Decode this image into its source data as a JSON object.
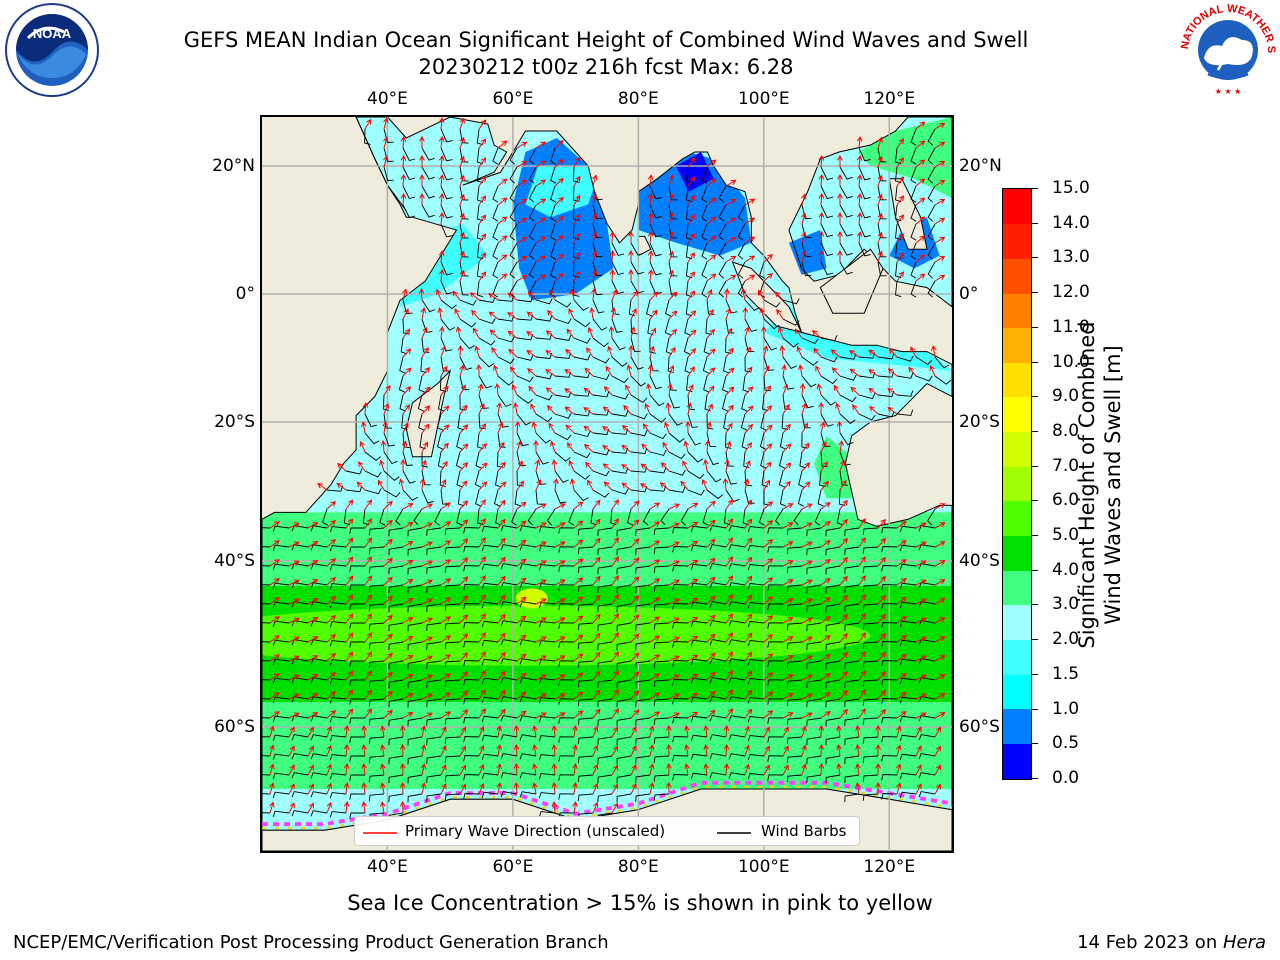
{
  "header": {
    "title_line1": "GEFS MEAN Indian Ocean Significant Height of Combined Wind Waves and Swell",
    "title_line2": "20230212 t00z 216h fcst   Max: 6.28"
  },
  "logos": {
    "left": "NOAA",
    "right_text": "NATIONAL WEATHER SERVICE"
  },
  "map": {
    "lon_ticks": [
      "40°E",
      "60°E",
      "80°E",
      "100°E",
      "120°E"
    ],
    "lat_ticks": [
      "20°N",
      "0°",
      "20°S",
      "40°S",
      "60°S"
    ],
    "extent": {
      "lon": [
        20,
        130
      ],
      "lat": [
        -72,
        27
      ]
    },
    "land_color": "#efecdc",
    "grid": true
  },
  "legend": {
    "wave_label": "Primary Wave Direction (unscaled)",
    "wind_label": "Wind Barbs",
    "wave_color": "#ff0000",
    "wind_color": "#000000"
  },
  "colorbar": {
    "title_line1": "Significant Height of Combined",
    "title_line2": "Wind Waves and Swell [m]",
    "ticks": [
      "0.0",
      "0.5",
      "1.0",
      "1.5",
      "2.0",
      "3.0",
      "4.0",
      "5.0",
      "6.0",
      "7.0",
      "8.0",
      "9.0",
      "10.0",
      "11.0",
      "12.0",
      "13.0",
      "14.0",
      "15.0"
    ],
    "colors": [
      "#0000ff",
      "#0080ff",
      "#00ffff",
      "#40ffff",
      "#a0ffff",
      "#40ff80",
      "#00e000",
      "#50ff00",
      "#a0ff00",
      "#d0ff00",
      "#ffff00",
      "#ffe000",
      "#ffb000",
      "#ff8000",
      "#ff5000",
      "#ff2000",
      "#ff0000"
    ]
  },
  "notes": {
    "sea_ice": "Sea Ice Concentration > 15% is shown in pink to yellow",
    "branch": "NCEP/EMC/Verification Post Processing Product Generation Branch",
    "date": "14 Feb 2023 on ",
    "machine": "Hera"
  }
}
